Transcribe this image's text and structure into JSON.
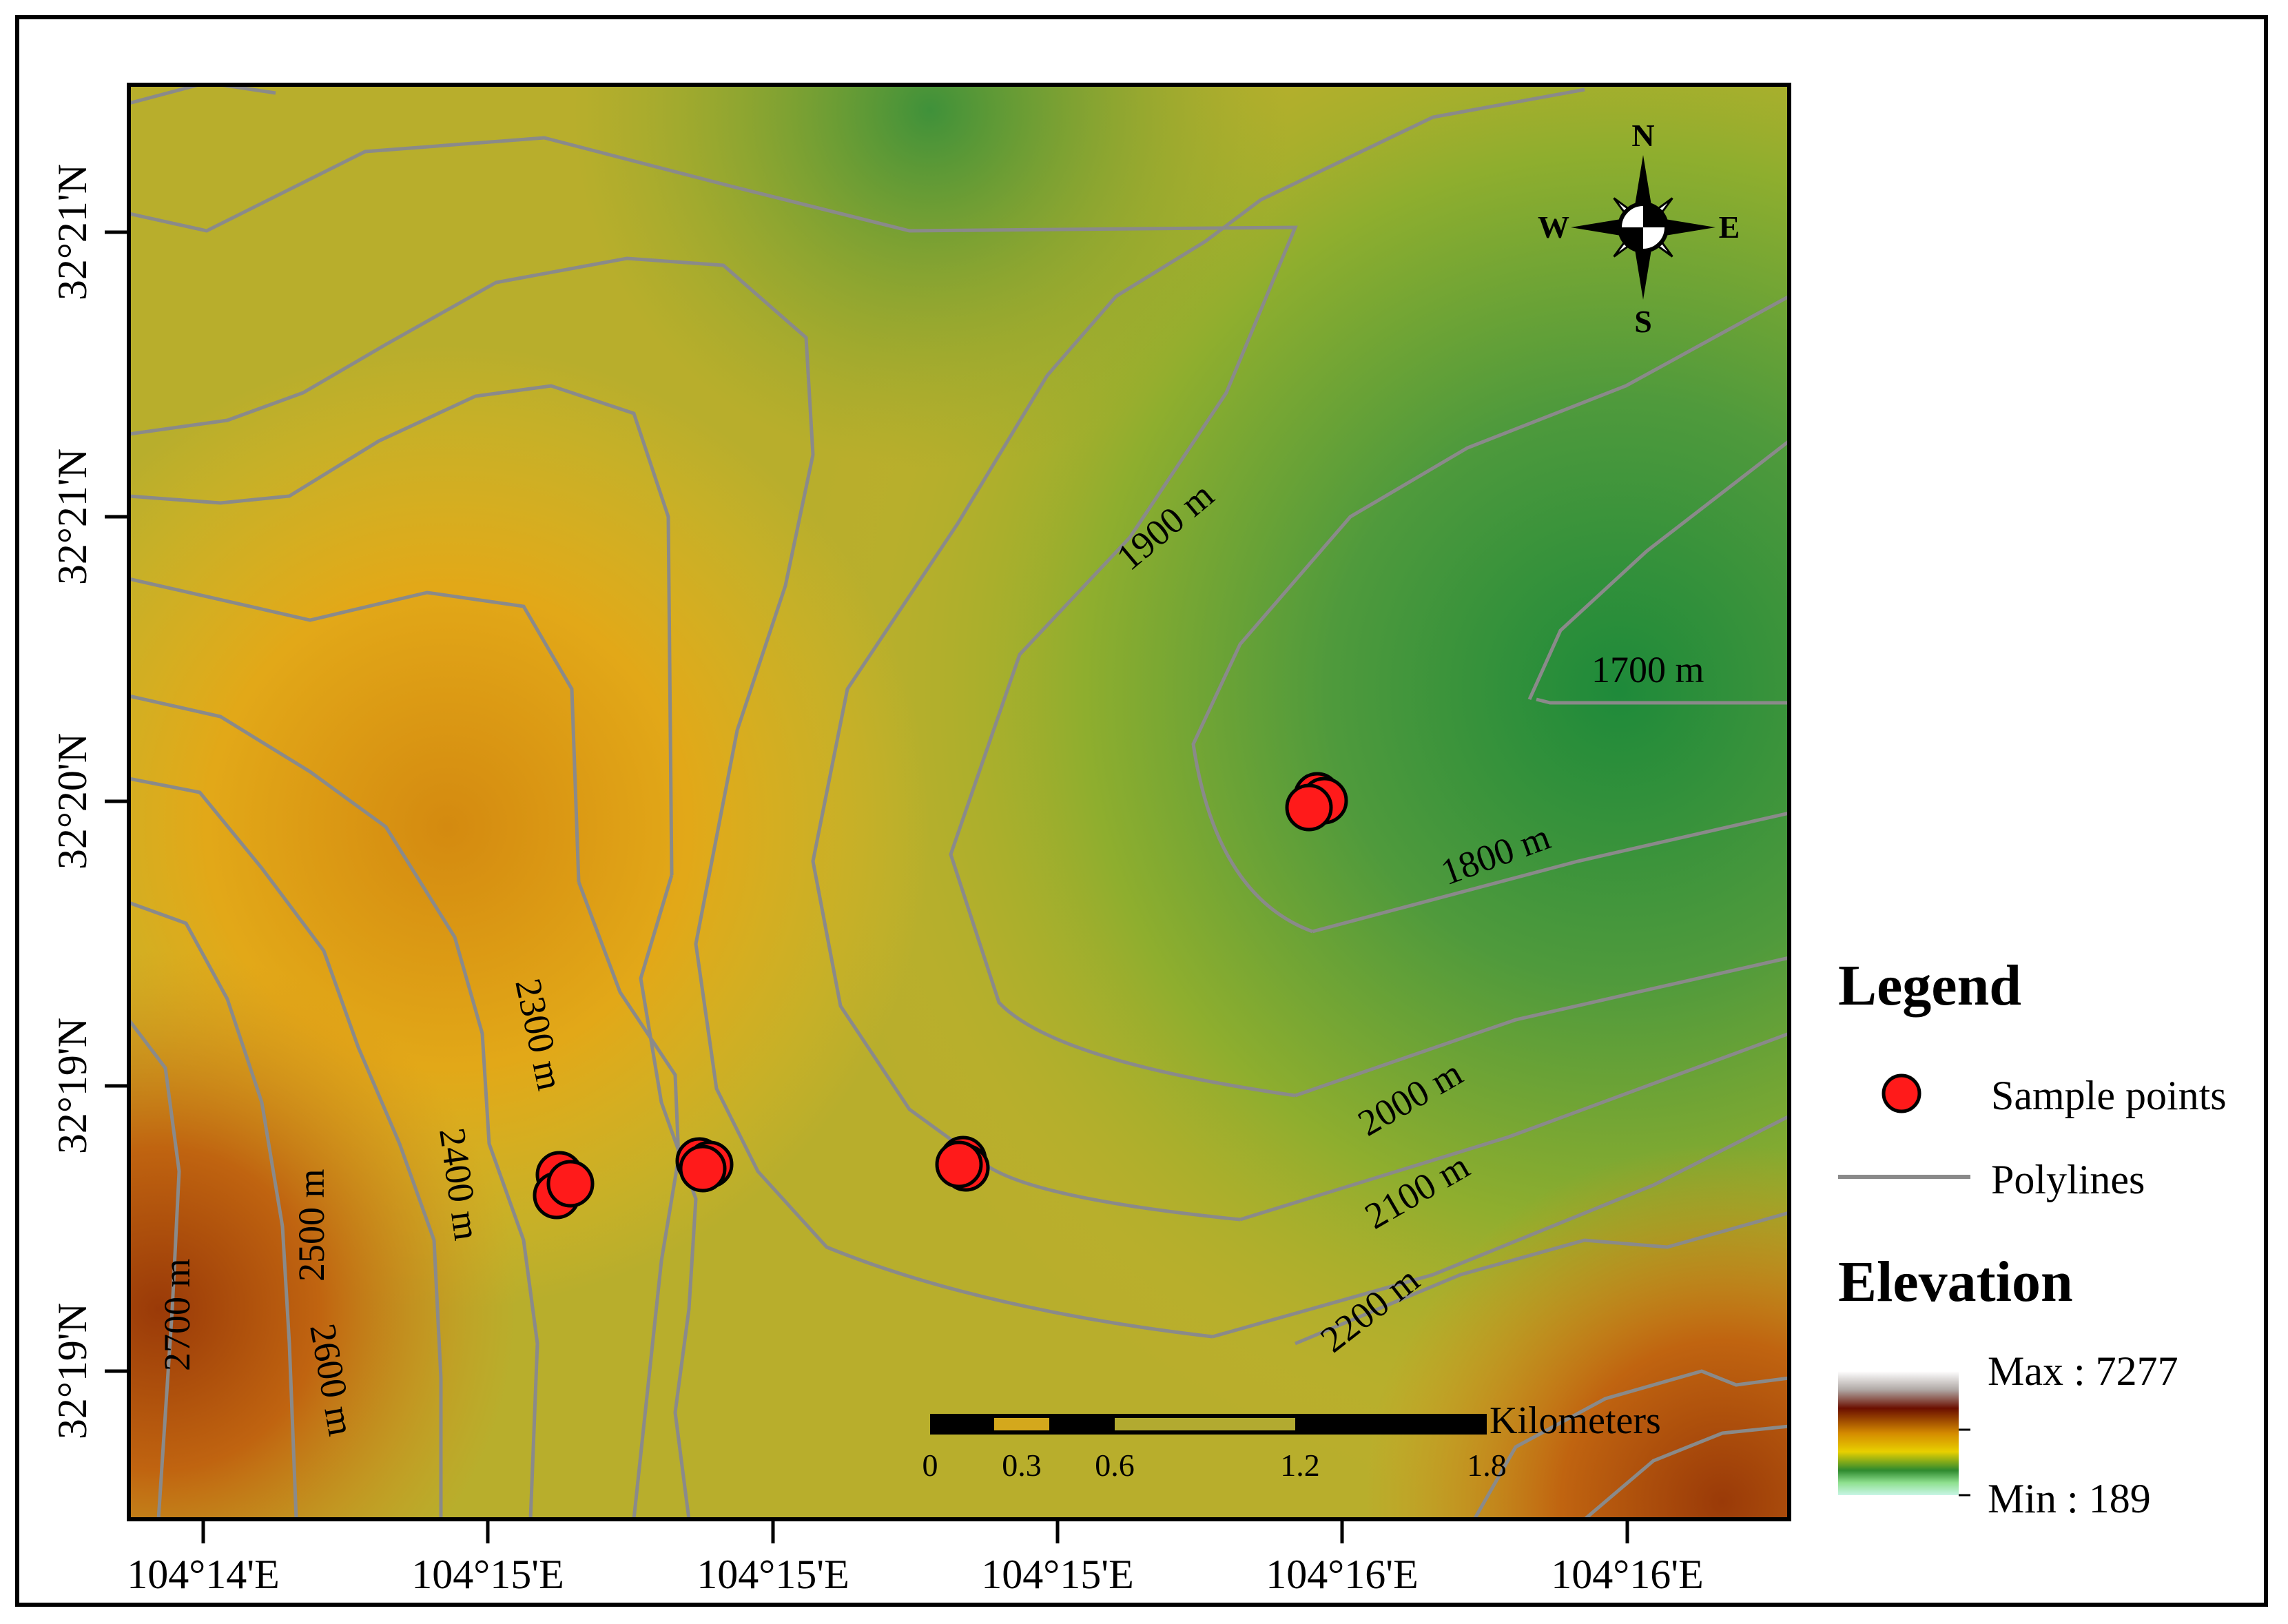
{
  "map": {
    "lon_ticks": [
      "104°14'E",
      "104°15'E",
      "104°15'E",
      "104°15'E",
      "104°16'E",
      "104°16'E"
    ],
    "lat_ticks": [
      "32°21'N",
      "32°21'N",
      "32°20'N",
      "32°19'N",
      "32°19'N"
    ],
    "contour_labels": [
      "1700 m",
      "1800 m",
      "1900 m",
      "2000 m",
      "2100 m",
      "2200 m",
      "2300 m",
      "2400 m",
      "2500 m",
      "2600 m",
      "2700 m"
    ],
    "north_arrow": {
      "n": "N",
      "s": "S",
      "e": "E",
      "w": "W"
    },
    "scale_bar": {
      "unit": "Kilometers",
      "ticks": [
        "0",
        "0.3",
        "0.6",
        "1.2",
        "1.8"
      ]
    },
    "sample_points_count": 4
  },
  "legend": {
    "title": "Legend",
    "items": [
      {
        "label": "Sample points",
        "symbol": "red-circle-icon"
      },
      {
        "label": "Polylines",
        "symbol": "gray-line-icon"
      }
    ],
    "elevation_title": "Elevation",
    "max_label": "Max : 7277",
    "min_label": "Min : 189"
  },
  "colors": {
    "sample_point": "#ff1a1a",
    "contour": "#8a8a8a",
    "ramp": [
      "#ffffff",
      "#6b0f00",
      "#d48a00",
      "#2e8a2e",
      "#c8f5e6"
    ]
  }
}
